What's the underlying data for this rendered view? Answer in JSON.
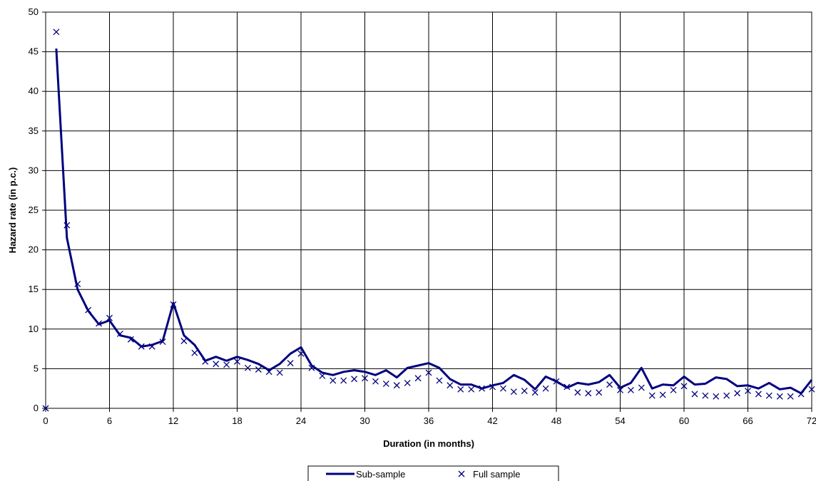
{
  "chart_data": {
    "type": "line",
    "xlabel": "Duration (in months)",
    "ylabel": "Hazard rate (in p.c.)",
    "xlim": [
      0,
      72
    ],
    "ylim": [
      0,
      50
    ],
    "xticks": [
      "0",
      "6",
      "12",
      "18",
      "24",
      "30",
      "36",
      "42",
      "48",
      "54",
      "60",
      "66",
      "72"
    ],
    "yticks": [
      "0",
      "5",
      "10",
      "15",
      "20",
      "25",
      "30",
      "35",
      "40",
      "45",
      "50"
    ],
    "grid": true,
    "legend_position": "bottom",
    "colors": {
      "series": "#00007f"
    },
    "series": [
      {
        "name": "Sub-sample",
        "style": "line",
        "x": [
          1,
          2,
          3,
          4,
          5,
          6,
          7,
          8,
          9,
          10,
          11,
          12,
          13,
          14,
          15,
          16,
          17,
          18,
          19,
          20,
          21,
          22,
          23,
          24,
          25,
          26,
          27,
          28,
          29,
          30,
          31,
          32,
          33,
          34,
          35,
          36,
          37,
          38,
          39,
          40,
          41,
          42,
          43,
          44,
          45,
          46,
          47,
          48,
          49,
          50,
          51,
          52,
          53,
          54,
          55,
          56,
          57,
          58,
          59,
          60,
          61,
          62,
          63,
          64,
          65,
          66,
          67,
          68,
          69,
          70,
          71,
          72
        ],
        "values": [
          45.4,
          21.5,
          15.0,
          12.3,
          10.6,
          11.1,
          9.2,
          8.9,
          7.8,
          8.0,
          8.5,
          13.3,
          9.2,
          8.0,
          6.0,
          6.5,
          6.0,
          6.5,
          6.1,
          5.6,
          4.8,
          5.6,
          6.9,
          7.7,
          5.4,
          4.5,
          4.2,
          4.6,
          4.8,
          4.6,
          4.2,
          4.8,
          3.9,
          5.1,
          5.4,
          5.7,
          5.1,
          3.7,
          3.0,
          3.0,
          2.5,
          2.9,
          3.2,
          4.2,
          3.6,
          2.4,
          4.0,
          3.4,
          2.6,
          3.2,
          3.0,
          3.3,
          4.2,
          2.6,
          3.2,
          5.1,
          2.5,
          3.0,
          2.9,
          4.0,
          3.0,
          3.1,
          3.9,
          3.7,
          2.8,
          2.9,
          2.5,
          3.2,
          2.4,
          2.6,
          1.9,
          3.6
        ]
      },
      {
        "name": "Full sample",
        "style": "markers",
        "x": [
          0,
          1,
          2,
          3,
          4,
          5,
          6,
          7,
          8,
          9,
          10,
          11,
          12,
          13,
          14,
          15,
          16,
          17,
          18,
          19,
          20,
          21,
          22,
          23,
          24,
          25,
          26,
          27,
          28,
          29,
          30,
          31,
          32,
          33,
          34,
          35,
          36,
          37,
          38,
          39,
          40,
          41,
          42,
          43,
          44,
          45,
          46,
          47,
          48,
          49,
          50,
          51,
          52,
          53,
          54,
          55,
          56,
          57,
          58,
          59,
          60,
          61,
          62,
          63,
          64,
          65,
          66,
          67,
          68,
          69,
          70,
          71,
          72
        ],
        "values": [
          0,
          47.5,
          23.1,
          15.7,
          12.4,
          10.7,
          11.4,
          9.4,
          8.7,
          7.8,
          7.8,
          8.4,
          13.1,
          8.5,
          7.0,
          5.9,
          5.6,
          5.5,
          5.9,
          5.1,
          4.9,
          4.6,
          4.5,
          5.7,
          6.9,
          5.1,
          4.1,
          3.5,
          3.5,
          3.7,
          3.8,
          3.4,
          3.1,
          2.9,
          3.2,
          3.8,
          4.5,
          3.5,
          2.9,
          2.4,
          2.4,
          2.5,
          2.7,
          2.5,
          2.1,
          2.2,
          2.0,
          2.5,
          3.4,
          2.7,
          2.0,
          1.9,
          2.0,
          3.0,
          2.3,
          2.3,
          2.6,
          1.6,
          1.7,
          2.3,
          2.8,
          1.8,
          1.6,
          1.5,
          1.6,
          1.9,
          2.2,
          1.8,
          1.6,
          1.5,
          1.5,
          1.8,
          2.4
        ]
      }
    ]
  }
}
